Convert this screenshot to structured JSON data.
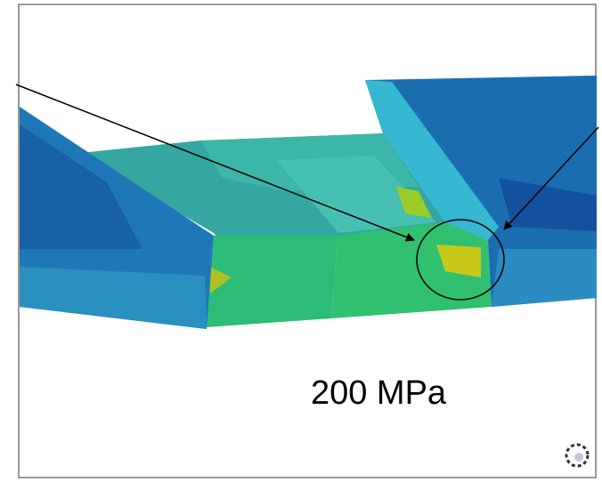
{
  "annotation": {
    "label": "200 MPa"
  }
}
